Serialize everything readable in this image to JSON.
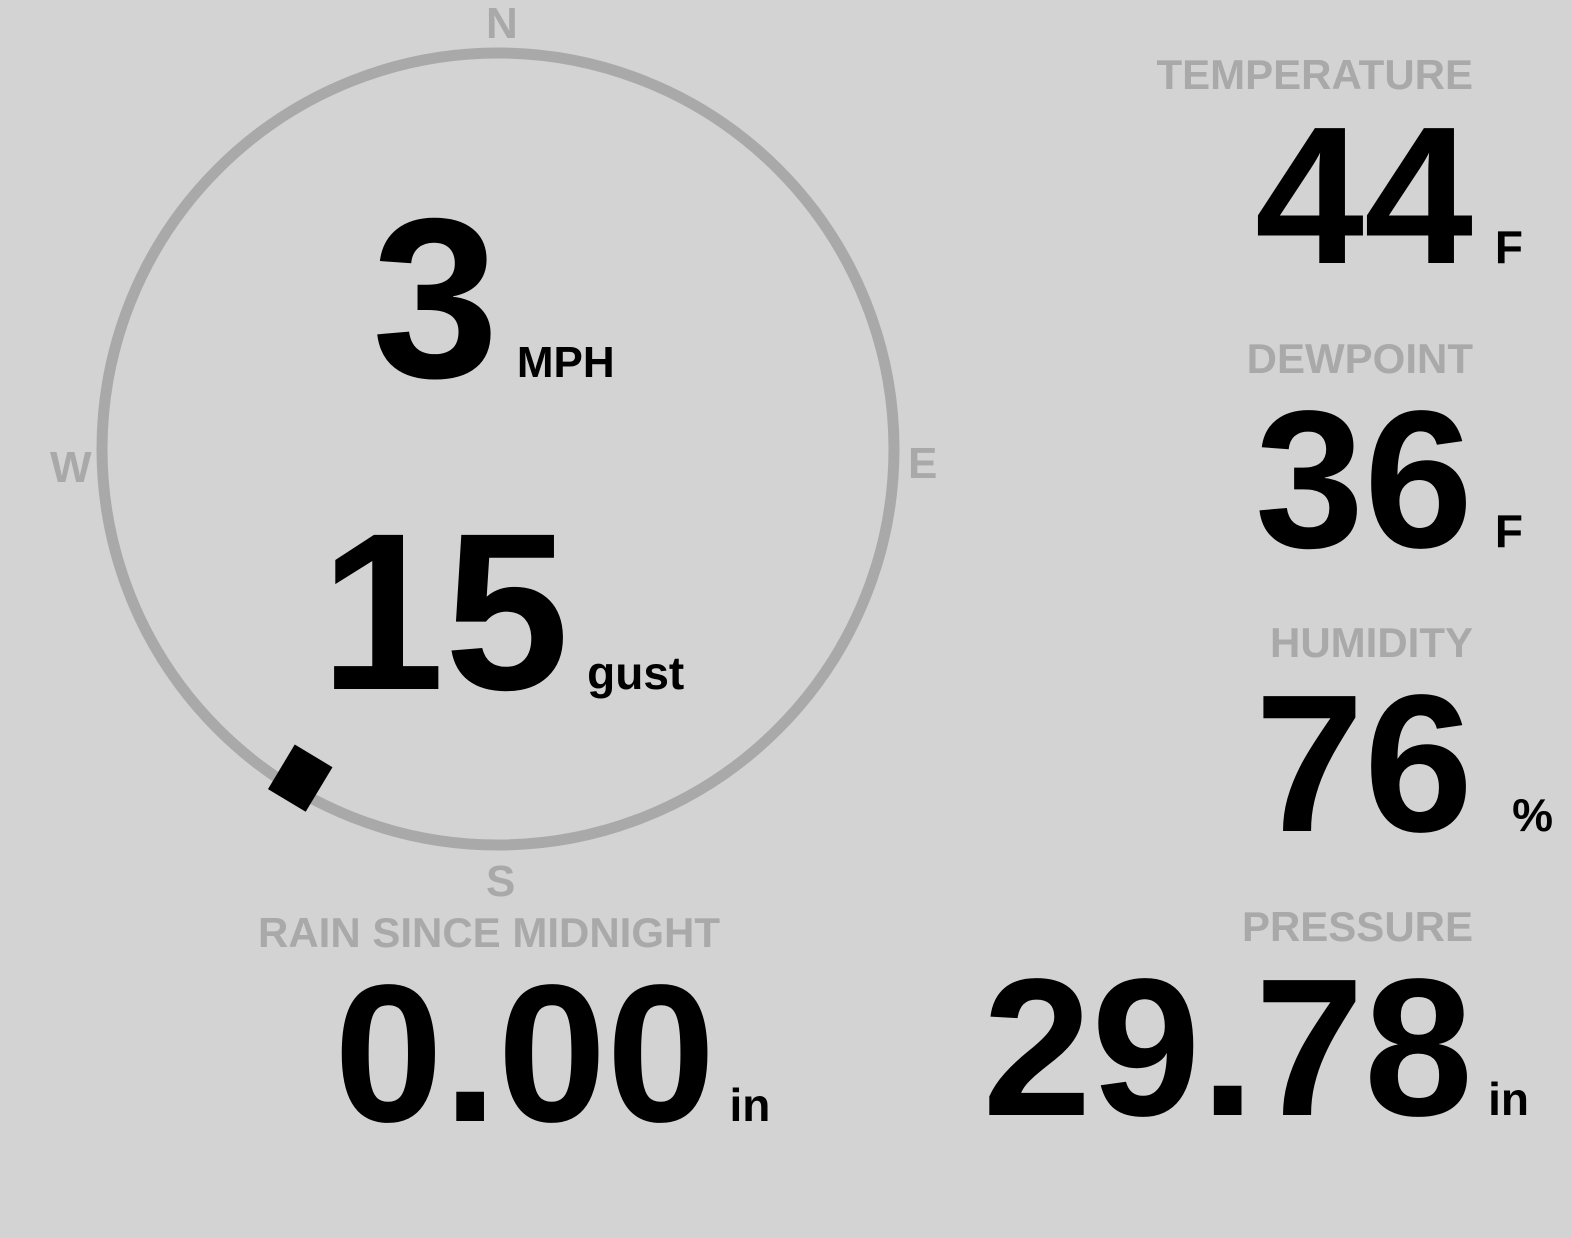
{
  "wind": {
    "speed": "3",
    "speed_unit": "MPH",
    "gust": "15",
    "gust_label": "gust",
    "direction_degrees": 211,
    "compass": {
      "n": "N",
      "e": "E",
      "s": "S",
      "w": "W"
    }
  },
  "temperature": {
    "label": "TEMPERATURE",
    "value": "44",
    "unit": "F"
  },
  "dewpoint": {
    "label": "DEWPOINT",
    "value": "36",
    "unit": "F"
  },
  "humidity": {
    "label": "HUMIDITY",
    "value": "76",
    "unit": "%"
  },
  "pressure": {
    "label": "PRESSURE",
    "value": "29.78",
    "unit": "in"
  },
  "rain": {
    "label": "RAIN SINCE MIDNIGHT",
    "value": "0.00",
    "unit": "in"
  },
  "colors": {
    "background": "#d3d3d3",
    "muted": "#a9a9a9",
    "value": "#000000"
  }
}
